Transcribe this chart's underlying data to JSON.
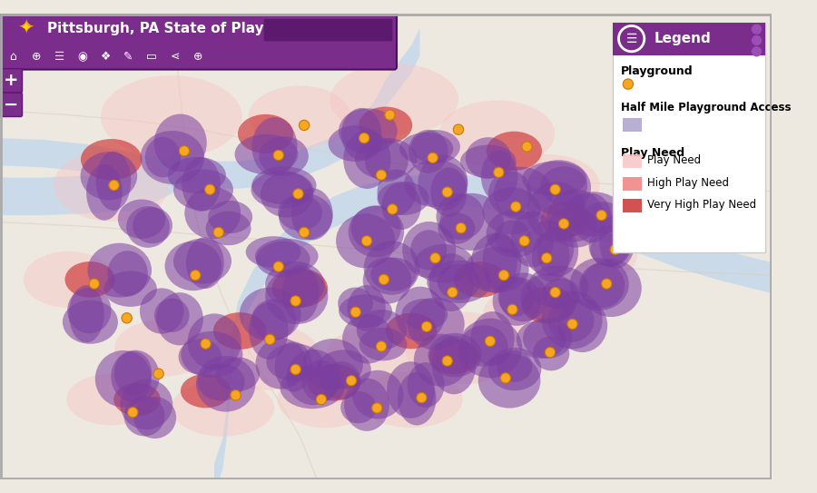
{
  "title": "Pittsburgh, PA State of Play",
  "toolbar_color": "#7B2D8B",
  "toolbar_dark": "#5C1A6E",
  "legend_title": "Legend",
  "legend_bg": "#ffffff",
  "legend_header_color": "#7B2D8B",
  "map_bg": "#e8e0d8",
  "plus_minus_color": "#7B2D8B",
  "search_bar_color": "#5C1A6E",
  "playground_label": "Playground",
  "playground_color": "#F5A623",
  "access_label": "Half Mile Playground Access",
  "access_color": "#9B8DBF",
  "play_need_label": "Play Need",
  "need_levels": [
    "Play Need",
    "High Play Need",
    "Very High Play Need"
  ],
  "need_colors": [
    "#F7C5C5",
    "#F08080",
    "#CD3333"
  ],
  "purple_blobs_color": "#7B3FA0",
  "river_color": "#C5D8EA",
  "land_color": "#EDE8E0"
}
